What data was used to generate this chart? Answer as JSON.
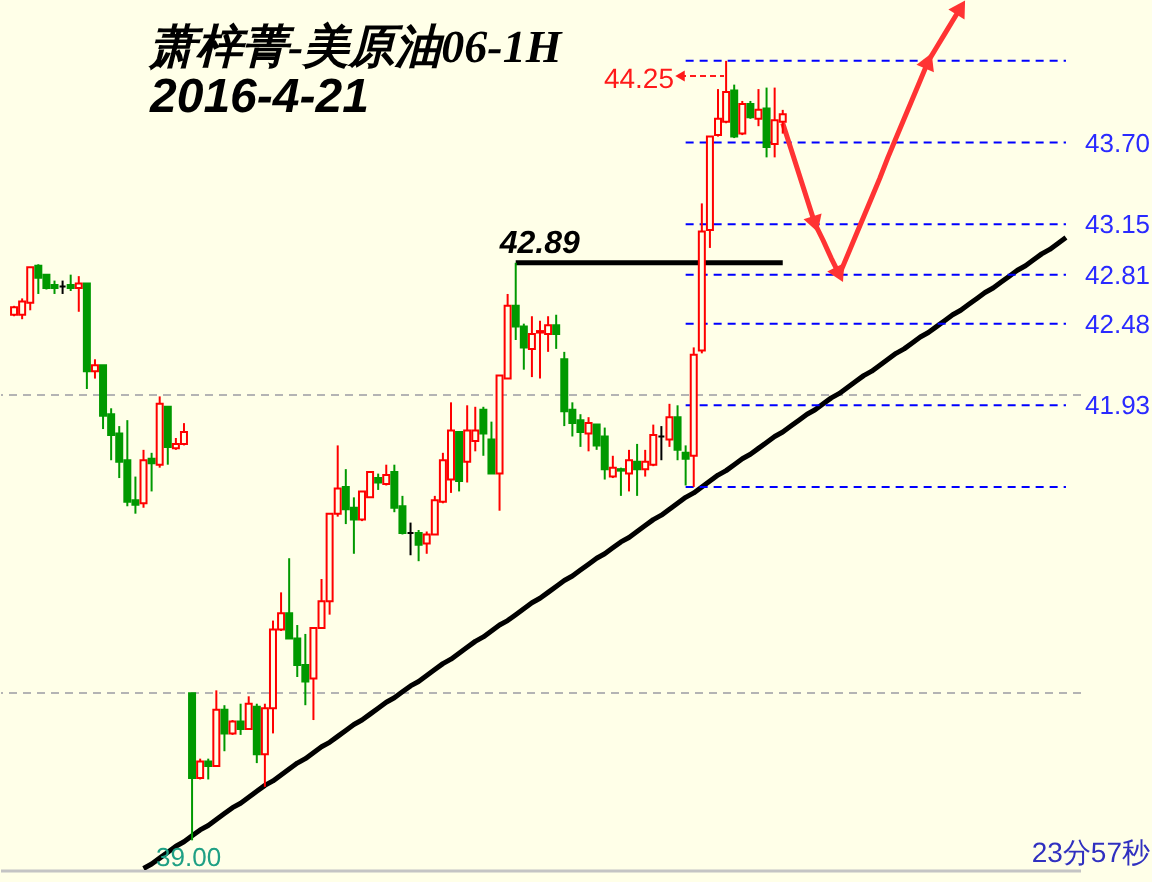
{
  "chart_data": {
    "type": "candlestick",
    "title": "萧梓菁-美原油06-1H",
    "subtitle": "2016-4-21",
    "categories": [
      null,
      null,
      null,
      null,
      null,
      null,
      null,
      null,
      null,
      null,
      null,
      null,
      null,
      null,
      null,
      null,
      null,
      null,
      null,
      null,
      null,
      null,
      null,
      null,
      null,
      null,
      null,
      null,
      null,
      null,
      null,
      null,
      null,
      null,
      null,
      null,
      null,
      null,
      null,
      null,
      null,
      null,
      null,
      null,
      null,
      null,
      null,
      null,
      null,
      null,
      null,
      null,
      null,
      null,
      null,
      null,
      null,
      null,
      null,
      null,
      null,
      null,
      null,
      null,
      null,
      null,
      null,
      null,
      null,
      null,
      null,
      null,
      null,
      null,
      null,
      null,
      null,
      null,
      null,
      null,
      null,
      null,
      null,
      null,
      null,
      null,
      null,
      null,
      null,
      null,
      null,
      null,
      null,
      null,
      null,
      null,
      null,
      null,
      null,
      null,
      null,
      null,
      null,
      null,
      null,
      null,
      null,
      null,
      null,
      null,
      null,
      null,
      null,
      null,
      null,
      null,
      null,
      null,
      null,
      null,
      null,
      null,
      null,
      null,
      null,
      null,
      null,
      null,
      null,
      null,
      null
    ],
    "ohlc": [
      [
        42.54,
        42.6,
        42.53,
        42.59
      ],
      [
        42.54,
        42.65,
        42.51,
        42.63
      ],
      [
        42.62,
        42.86,
        42.57,
        42.86
      ],
      [
        42.87,
        42.88,
        42.68,
        42.79
      ],
      [
        42.81,
        42.81,
        42.71,
        42.72
      ],
      [
        42.74,
        42.77,
        42.68,
        42.72
      ],
      [
        42.73,
        42.77,
        42.68,
        42.73
      ],
      [
        42.74,
        42.81,
        42.7,
        42.72
      ],
      [
        42.72,
        42.8,
        42.56,
        42.75
      ],
      [
        42.75,
        42.75,
        42.04,
        42.16
      ],
      [
        42.16,
        42.24,
        42.11,
        42.2
      ],
      [
        42.2,
        42.2,
        41.77,
        41.86
      ],
      [
        41.87,
        41.91,
        41.56,
        41.73
      ],
      [
        41.74,
        41.79,
        41.44,
        41.55
      ],
      [
        41.56,
        41.83,
        41.25,
        41.28
      ],
      [
        41.29,
        41.45,
        41.2,
        41.26
      ],
      [
        41.27,
        41.63,
        41.24,
        41.56
      ],
      [
        41.57,
        41.61,
        41.35,
        41.54
      ],
      [
        41.53,
        41.99,
        41.51,
        41.94
      ],
      [
        41.92,
        41.92,
        41.53,
        41.65
      ],
      [
        41.64,
        41.71,
        41.63,
        41.67
      ],
      [
        41.67,
        41.81,
        41.66,
        41.75
      ],
      [
        39.99,
        39.99,
        39.0,
        39.42
      ],
      [
        39.42,
        39.55,
        39.41,
        39.53
      ],
      [
        39.53,
        39.55,
        39.41,
        39.5
      ],
      [
        39.5,
        40.01,
        39.5,
        39.88
      ],
      [
        39.88,
        39.91,
        39.6,
        39.72
      ],
      [
        39.72,
        39.81,
        39.71,
        39.8
      ],
      [
        39.8,
        39.92,
        39.71,
        39.75
      ],
      [
        39.75,
        39.97,
        39.75,
        39.92
      ],
      [
        39.9,
        39.92,
        39.52,
        39.58
      ],
      [
        39.58,
        39.92,
        39.36,
        39.89
      ],
      [
        39.89,
        40.48,
        39.72,
        40.42
      ],
      [
        40.42,
        40.67,
        40.41,
        40.53
      ],
      [
        40.53,
        40.9,
        40.36,
        40.36
      ],
      [
        40.36,
        40.45,
        40.1,
        40.18
      ],
      [
        40.18,
        40.39,
        39.91,
        40.07
      ],
      [
        40.09,
        40.43,
        39.81,
        40.43
      ],
      [
        40.43,
        40.76,
        40.43,
        40.61
      ],
      [
        40.61,
        41.2,
        40.52,
        41.2
      ],
      [
        41.2,
        41.66,
        41.18,
        41.37
      ],
      [
        41.38,
        41.5,
        41.13,
        41.23
      ],
      [
        41.24,
        41.31,
        40.93,
        41.16
      ],
      [
        41.16,
        41.35,
        41.15,
        41.35
      ],
      [
        41.31,
        41.48,
        41.31,
        41.48
      ],
      [
        41.44,
        41.47,
        41.36,
        41.41
      ],
      [
        41.4,
        41.53,
        41.39,
        41.46
      ],
      [
        41.48,
        41.53,
        41.21,
        41.24
      ],
      [
        41.25,
        41.32,
        41.06,
        41.07
      ],
      [
        41.07,
        41.14,
        40.92,
        41.07
      ],
      [
        41.07,
        41.09,
        40.88,
        40.99
      ],
      [
        41.0,
        41.08,
        40.93,
        41.06
      ],
      [
        41.06,
        41.32,
        41.06,
        41.29
      ],
      [
        41.28,
        41.61,
        41.27,
        41.56
      ],
      [
        41.43,
        41.95,
        41.34,
        41.76
      ],
      [
        41.75,
        41.75,
        41.35,
        41.42
      ],
      [
        41.55,
        41.93,
        41.41,
        41.76
      ],
      [
        41.69,
        41.92,
        41.62,
        41.76
      ],
      [
        41.9,
        41.92,
        41.59,
        41.74
      ],
      [
        41.7,
        41.82,
        41.47,
        41.47
      ],
      [
        41.47,
        42.13,
        41.22,
        42.13
      ],
      [
        42.11,
        42.68,
        42.11,
        42.6
      ],
      [
        42.6,
        42.89,
        42.37,
        42.46
      ],
      [
        42.46,
        42.48,
        42.17,
        42.32
      ],
      [
        42.31,
        42.53,
        42.12,
        42.41
      ],
      [
        42.42,
        42.5,
        42.11,
        42.43
      ],
      [
        42.41,
        42.53,
        42.29,
        42.47
      ],
      [
        42.47,
        42.54,
        42.31,
        42.41
      ],
      [
        42.24,
        42.29,
        41.79,
        41.89
      ],
      [
        41.9,
        41.95,
        41.72,
        41.81
      ],
      [
        41.83,
        41.87,
        41.65,
        41.75
      ],
      [
        41.74,
        41.85,
        41.62,
        41.81
      ],
      [
        41.8,
        41.8,
        41.63,
        41.66
      ],
      [
        41.72,
        41.78,
        41.43,
        41.5
      ],
      [
        41.45,
        41.59,
        41.44,
        41.51
      ],
      [
        41.5,
        41.51,
        41.32,
        41.49
      ],
      [
        41.47,
        41.63,
        41.35,
        41.56
      ],
      [
        41.55,
        41.67,
        41.32,
        41.5
      ],
      [
        41.5,
        41.63,
        41.45,
        41.55
      ],
      [
        41.53,
        41.8,
        41.52,
        41.73
      ],
      [
        41.72,
        41.79,
        41.56,
        41.72
      ],
      [
        41.7,
        41.94,
        41.65,
        41.85
      ],
      [
        41.85,
        41.93,
        41.56,
        41.63
      ],
      [
        41.61,
        41.66,
        41.39,
        41.57
      ],
      [
        41.59,
        42.32,
        41.38,
        42.27
      ],
      [
        42.3,
        43.29,
        42.28,
        43.1
      ],
      [
        43.11,
        43.74,
        42.99,
        43.74
      ],
      [
        43.75,
        44.06,
        43.74,
        43.86
      ],
      [
        43.84,
        44.25,
        43.83,
        44.04
      ],
      [
        44.05,
        44.09,
        43.73,
        43.74
      ],
      [
        43.76,
        43.98,
        43.75,
        43.96
      ],
      [
        43.96,
        43.98,
        43.86,
        43.87
      ],
      [
        43.86,
        44.06,
        43.81,
        43.92
      ],
      [
        43.93,
        44.07,
        43.6,
        43.67
      ],
      [
        43.69,
        44.07,
        43.6,
        43.85
      ],
      [
        43.84,
        43.92,
        43.76,
        43.89
      ],
      null,
      null,
      null,
      null,
      null,
      null,
      null,
      null,
      null,
      null,
      null,
      null,
      null,
      null,
      null,
      null,
      null,
      null,
      null,
      null,
      null,
      null,
      null,
      null,
      null,
      null,
      null,
      null,
      null,
      null,
      null,
      null,
      null,
      null,
      null
    ],
    "colors": [
      "#ff0000",
      "#ff0000",
      "#ff0000",
      "#009900",
      "#009900",
      "#009900",
      "#000000",
      "#009900",
      "#ff0000",
      "#009900",
      "#ff0000",
      "#009900",
      "#009900",
      "#009900",
      "#009900",
      "#009900",
      "#ff0000",
      "#009900",
      "#ff0000",
      "#009900",
      "#ff0000",
      "#ff0000",
      "#009900",
      "#ff0000",
      "#009900",
      "#ff0000",
      "#009900",
      "#ff0000",
      "#009900",
      "#ff0000",
      "#009900",
      "#ff0000",
      "#ff0000",
      "#ff0000",
      "#009900",
      "#009900",
      "#009900",
      "#ff0000",
      "#ff0000",
      "#ff0000",
      "#ff0000",
      "#009900",
      "#009900",
      "#ff0000",
      "#ff0000",
      "#009900",
      "#ff0000",
      "#009900",
      "#009900",
      "#000000",
      "#009900",
      "#ff0000",
      "#ff0000",
      "#ff0000",
      "#ff0000",
      "#009900",
      "#ff0000",
      "#ff0000",
      "#009900",
      "#009900",
      "#ff0000",
      "#ff0000",
      "#009900",
      "#009900",
      "#ff0000",
      "#ff0000",
      "#ff0000",
      "#009900",
      "#009900",
      "#009900",
      "#009900",
      "#ff0000",
      "#009900",
      "#009900",
      "#ff0000",
      "#009900",
      "#ff0000",
      "#009900",
      "#ff0000",
      "#ff0000",
      "#000000",
      "#ff0000",
      "#009900",
      "#009900",
      "#ff0000",
      "#ff0000",
      "#ff0000",
      "#ff0000",
      "#ff0000",
      "#009900",
      "#ff0000",
      "#009900",
      "#ff0000",
      "#009900",
      "#ff0000",
      "#ff0000",
      null,
      null,
      null,
      null,
      null,
      null,
      null,
      null,
      null,
      null,
      null,
      null,
      null,
      null,
      null,
      null,
      null,
      null,
      null,
      null,
      null,
      null,
      null,
      null,
      null,
      null,
      null,
      null,
      null,
      null,
      null,
      null,
      null,
      null,
      null
    ],
    "ylim": [
      38.8,
      44.66
    ],
    "yticks": [
      {
        "value": 40,
        "label": null
      },
      41.93,
      {
        "value": 42,
        "label": null
      },
      42.48,
      42.81,
      43.15,
      {
        "value": 43.7,
        "label": "43.70"
      }
    ],
    "grid": "y",
    "tick_labels": "y",
    "series": [
      {
        "type": "line",
        "color": "#000000",
        "values": [
          null,
          null,
          null,
          null,
          null,
          null,
          null,
          null,
          null,
          null,
          null,
          null,
          null,
          null,
          null,
          null,
          38.81,
          38.84,
          38.88,
          38.92,
          38.96,
          38.99,
          39.03,
          39.07,
          39.1,
          39.14,
          39.18,
          39.22,
          39.25,
          39.29,
          39.33,
          39.37,
          39.4,
          39.44,
          39.48,
          39.52,
          39.55,
          39.59,
          39.63,
          39.66,
          39.7,
          39.74,
          39.78,
          39.81,
          39.85,
          39.89,
          39.93,
          39.96,
          40.0,
          40.04,
          40.07,
          40.11,
          40.15,
          40.19,
          40.22,
          40.26,
          40.3,
          40.34,
          40.37,
          40.41,
          40.45,
          40.48,
          40.52,
          40.56,
          40.6,
          40.63,
          40.67,
          40.71,
          40.75,
          40.78,
          40.82,
          40.86,
          40.9,
          40.93,
          40.97,
          41.01,
          41.04,
          41.08,
          41.12,
          41.16,
          41.19,
          41.23,
          41.27,
          41.31,
          41.34,
          41.38,
          41.42,
          41.46,
          41.49,
          41.53,
          41.57,
          41.6,
          41.64,
          41.68,
          41.72,
          41.75,
          41.79,
          41.83,
          41.87,
          41.9,
          41.94,
          41.98,
          42.01,
          42.05,
          42.09,
          42.13,
          42.16,
          42.2,
          42.24,
          42.28,
          42.31,
          42.35,
          42.39,
          42.42,
          42.46,
          42.5,
          42.54,
          42.57,
          42.61,
          42.65,
          42.69,
          42.72,
          42.76,
          42.8,
          42.84,
          42.87,
          42.91,
          42.95,
          42.98,
          43.02,
          43.06
        ]
      },
      {
        "type": "line",
        "color": "#000000",
        "values": [
          null,
          null,
          null,
          null,
          null,
          null,
          null,
          null,
          null,
          null,
          null,
          null,
          null,
          null,
          null,
          null,
          null,
          null,
          null,
          null,
          null,
          null,
          null,
          null,
          null,
          null,
          null,
          null,
          null,
          null,
          null,
          null,
          null,
          null,
          null,
          null,
          null,
          null,
          null,
          null,
          null,
          null,
          null,
          null,
          null,
          null,
          null,
          null,
          null,
          null,
          null,
          null,
          null,
          null,
          null,
          null,
          null,
          null,
          null,
          null,
          null,
          null,
          42.89,
          42.89,
          42.89,
          42.89,
          42.89,
          42.89,
          42.89,
          42.89,
          42.89,
          42.89,
          42.89,
          42.89,
          42.89,
          42.89,
          42.89,
          42.89,
          42.89,
          42.89,
          42.89,
          42.89,
          42.89,
          42.89,
          42.89,
          42.89,
          42.89,
          42.89,
          42.89,
          42.89,
          42.89,
          42.89,
          42.89,
          42.89,
          42.89,
          42.89,
          null,
          null,
          null,
          null,
          null,
          null,
          null,
          null,
          null,
          null,
          null,
          null,
          null,
          null,
          null,
          null,
          null,
          null,
          null,
          null,
          null,
          null,
          null,
          null,
          null,
          null,
          null,
          null,
          null,
          null,
          null,
          null,
          null,
          null,
          null
        ]
      },
      {
        "type": "line",
        "color": "#0000ff",
        "line_style": "dashed",
        "values": [
          null,
          null,
          null,
          null,
          null,
          null,
          null,
          null,
          null,
          null,
          null,
          null,
          null,
          null,
          null,
          null,
          null,
          null,
          null,
          null,
          null,
          null,
          null,
          null,
          null,
          null,
          null,
          null,
          null,
          null,
          null,
          null,
          null,
          null,
          null,
          null,
          null,
          null,
          null,
          null,
          null,
          null,
          null,
          null,
          null,
          null,
          null,
          null,
          null,
          null,
          null,
          null,
          null,
          null,
          null,
          null,
          null,
          null,
          null,
          null,
          null,
          null,
          null,
          null,
          null,
          null,
          null,
          null,
          null,
          null,
          null,
          null,
          null,
          null,
          null,
          null,
          null,
          null,
          null,
          null,
          null,
          null,
          null,
          44.25,
          44.25,
          44.25,
          44.25,
          44.25,
          44.25,
          44.25,
          44.25,
          44.25,
          44.25,
          44.25,
          44.25,
          44.25,
          44.25,
          44.25,
          44.25,
          44.25,
          44.25,
          44.25,
          44.25,
          44.25,
          44.25,
          44.25,
          44.25,
          44.25,
          44.25,
          44.25,
          44.25,
          44.25,
          44.25,
          44.25,
          44.25,
          44.25,
          44.25,
          44.25,
          44.25,
          44.25,
          44.25,
          44.25,
          44.25,
          44.25,
          44.25,
          44.25,
          44.25,
          44.25,
          44.25,
          44.25,
          44.25
        ]
      },
      {
        "type": "line",
        "color": "#0000ff",
        "line_style": "dashed",
        "values": [
          null,
          null,
          null,
          null,
          null,
          null,
          null,
          null,
          null,
          null,
          null,
          null,
          null,
          null,
          null,
          null,
          null,
          null,
          null,
          null,
          null,
          null,
          null,
          null,
          null,
          null,
          null,
          null,
          null,
          null,
          null,
          null,
          null,
          null,
          null,
          null,
          null,
          null,
          null,
          null,
          null,
          null,
          null,
          null,
          null,
          null,
          null,
          null,
          null,
          null,
          null,
          null,
          null,
          null,
          null,
          null,
          null,
          null,
          null,
          null,
          null,
          null,
          null,
          null,
          null,
          null,
          null,
          null,
          null,
          null,
          null,
          null,
          null,
          null,
          null,
          null,
          null,
          null,
          null,
          null,
          null,
          null,
          null,
          43.7,
          43.7,
          43.7,
          43.7,
          43.7,
          43.7,
          43.7,
          43.7,
          43.7,
          43.7,
          43.7,
          43.7,
          43.7,
          43.7,
          43.7,
          43.7,
          43.7,
          43.7,
          43.7,
          43.7,
          43.7,
          43.7,
          43.7,
          43.7,
          43.7,
          43.7,
          43.7,
          43.7,
          43.7,
          43.7,
          43.7,
          43.7,
          43.7,
          43.7,
          43.7,
          43.7,
          43.7,
          43.7,
          43.7,
          43.7,
          43.7,
          43.7,
          43.7,
          43.7,
          43.7,
          43.7,
          43.7,
          43.7
        ]
      },
      {
        "type": "line",
        "color": "#0000ff",
        "line_style": "dashed",
        "values": [
          null,
          null,
          null,
          null,
          null,
          null,
          null,
          null,
          null,
          null,
          null,
          null,
          null,
          null,
          null,
          null,
          null,
          null,
          null,
          null,
          null,
          null,
          null,
          null,
          null,
          null,
          null,
          null,
          null,
          null,
          null,
          null,
          null,
          null,
          null,
          null,
          null,
          null,
          null,
          null,
          null,
          null,
          null,
          null,
          null,
          null,
          null,
          null,
          null,
          null,
          null,
          null,
          null,
          null,
          null,
          null,
          null,
          null,
          null,
          null,
          null,
          null,
          null,
          null,
          null,
          null,
          null,
          null,
          null,
          null,
          null,
          null,
          null,
          null,
          null,
          null,
          null,
          null,
          null,
          null,
          null,
          null,
          null,
          43.15,
          43.15,
          43.15,
          43.15,
          43.15,
          43.15,
          43.15,
          43.15,
          43.15,
          43.15,
          43.15,
          43.15,
          43.15,
          43.15,
          43.15,
          43.15,
          43.15,
          43.15,
          43.15,
          43.15,
          43.15,
          43.15,
          43.15,
          43.15,
          43.15,
          43.15,
          43.15,
          43.15,
          43.15,
          43.15,
          43.15,
          43.15,
          43.15,
          43.15,
          43.15,
          43.15,
          43.15,
          43.15,
          43.15,
          43.15,
          43.15,
          43.15,
          43.15,
          43.15,
          43.15,
          43.15,
          43.15,
          43.15
        ]
      },
      {
        "type": "line",
        "color": "#0000ff",
        "line_style": "dashed",
        "values": [
          null,
          null,
          null,
          null,
          null,
          null,
          null,
          null,
          null,
          null,
          null,
          null,
          null,
          null,
          null,
          null,
          null,
          null,
          null,
          null,
          null,
          null,
          null,
          null,
          null,
          null,
          null,
          null,
          null,
          null,
          null,
          null,
          null,
          null,
          null,
          null,
          null,
          null,
          null,
          null,
          null,
          null,
          null,
          null,
          null,
          null,
          null,
          null,
          null,
          null,
          null,
          null,
          null,
          null,
          null,
          null,
          null,
          null,
          null,
          null,
          null,
          null,
          null,
          null,
          null,
          null,
          null,
          null,
          null,
          null,
          null,
          null,
          null,
          null,
          null,
          null,
          null,
          null,
          null,
          null,
          null,
          null,
          null,
          42.81,
          42.81,
          42.81,
          42.81,
          42.81,
          42.81,
          42.81,
          42.81,
          42.81,
          42.81,
          42.81,
          42.81,
          42.81,
          42.81,
          42.81,
          42.81,
          42.81,
          42.81,
          42.81,
          42.81,
          42.81,
          42.81,
          42.81,
          42.81,
          42.81,
          42.81,
          42.81,
          42.81,
          42.81,
          42.81,
          42.81,
          42.81,
          42.81,
          42.81,
          42.81,
          42.81,
          42.81,
          42.81,
          42.81,
          42.81,
          42.81,
          42.81,
          42.81,
          42.81,
          42.81,
          42.81,
          42.81,
          42.81
        ]
      },
      {
        "type": "line",
        "color": "#0000ff",
        "line_style": "dashed",
        "values": [
          null,
          null,
          null,
          null,
          null,
          null,
          null,
          null,
          null,
          null,
          null,
          null,
          null,
          null,
          null,
          null,
          null,
          null,
          null,
          null,
          null,
          null,
          null,
          null,
          null,
          null,
          null,
          null,
          null,
          null,
          null,
          null,
          null,
          null,
          null,
          null,
          null,
          null,
          null,
          null,
          null,
          null,
          null,
          null,
          null,
          null,
          null,
          null,
          null,
          null,
          null,
          null,
          null,
          null,
          null,
          null,
          null,
          null,
          null,
          null,
          null,
          null,
          null,
          null,
          null,
          null,
          null,
          null,
          null,
          null,
          null,
          null,
          null,
          null,
          null,
          null,
          null,
          null,
          null,
          null,
          null,
          null,
          null,
          42.48,
          42.48,
          42.48,
          42.48,
          42.48,
          42.48,
          42.48,
          42.48,
          42.48,
          42.48,
          42.48,
          42.48,
          42.48,
          42.48,
          42.48,
          42.48,
          42.48,
          42.48,
          42.48,
          42.48,
          42.48,
          42.48,
          42.48,
          42.48,
          42.48,
          42.48,
          42.48,
          42.48,
          42.48,
          42.48,
          42.48,
          42.48,
          42.48,
          42.48,
          42.48,
          42.48,
          42.48,
          42.48,
          42.48,
          42.48,
          42.48,
          42.48,
          42.48,
          42.48,
          42.48,
          42.48,
          42.48,
          42.48
        ]
      },
      {
        "type": "line",
        "color": "#0000ff",
        "line_style": "dashed",
        "values": [
          null,
          null,
          null,
          null,
          null,
          null,
          null,
          null,
          null,
          null,
          null,
          null,
          null,
          null,
          null,
          null,
          null,
          null,
          null,
          null,
          null,
          null,
          null,
          null,
          null,
          null,
          null,
          null,
          null,
          null,
          null,
          null,
          null,
          null,
          null,
          null,
          null,
          null,
          null,
          null,
          null,
          null,
          null,
          null,
          null,
          null,
          null,
          null,
          null,
          null,
          null,
          null,
          null,
          null,
          null,
          null,
          null,
          null,
          null,
          null,
          null,
          null,
          null,
          null,
          null,
          null,
          null,
          null,
          null,
          null,
          null,
          null,
          null,
          null,
          null,
          null,
          null,
          null,
          null,
          null,
          null,
          null,
          null,
          41.93,
          41.93,
          41.93,
          41.93,
          41.93,
          41.93,
          41.93,
          41.93,
          41.93,
          41.93,
          41.93,
          41.93,
          41.93,
          41.93,
          41.93,
          41.93,
          41.93,
          41.93,
          41.93,
          41.93,
          41.93,
          41.93,
          41.93,
          41.93,
          41.93,
          41.93,
          41.93,
          41.93,
          41.93,
          41.93,
          41.93,
          41.93,
          41.93,
          41.93,
          41.93,
          41.93,
          41.93,
          41.93,
          41.93,
          41.93,
          41.93,
          41.93,
          41.93,
          41.93,
          41.93,
          41.93,
          41.93,
          41.93
        ]
      },
      {
        "type": "line",
        "color": "#0000ff",
        "line_style": "dashed",
        "values": [
          null,
          null,
          null,
          null,
          null,
          null,
          null,
          null,
          null,
          null,
          null,
          null,
          null,
          null,
          null,
          null,
          null,
          null,
          null,
          null,
          null,
          null,
          null,
          null,
          null,
          null,
          null,
          null,
          null,
          null,
          null,
          null,
          null,
          null,
          null,
          null,
          null,
          null,
          null,
          null,
          null,
          null,
          null,
          null,
          null,
          null,
          null,
          null,
          null,
          null,
          null,
          null,
          null,
          null,
          null,
          null,
          null,
          null,
          null,
          null,
          null,
          null,
          null,
          null,
          null,
          null,
          null,
          null,
          null,
          null,
          null,
          null,
          null,
          null,
          null,
          null,
          null,
          null,
          null,
          null,
          null,
          null,
          null,
          41.38,
          41.38,
          41.38,
          41.38,
          41.38,
          41.38,
          41.38,
          41.38,
          41.38,
          41.38,
          41.38,
          41.38,
          41.38,
          41.38,
          41.38,
          41.38,
          41.38,
          41.38,
          41.38,
          41.38,
          41.38,
          41.38,
          41.38,
          41.38,
          41.38,
          41.38,
          41.38,
          41.38,
          41.38,
          41.38,
          41.38,
          41.38,
          41.38,
          41.38,
          41.38,
          41.38,
          41.38,
          41.38,
          41.38,
          41.38,
          41.38,
          41.38,
          41.38,
          41.38,
          41.38,
          41.38,
          41.38,
          41.38
        ]
      },
      {
        "type": "line",
        "color": "#ff3333",
        "values": [
          null,
          null,
          null,
          null,
          null,
          null,
          null,
          null,
          null,
          null,
          null,
          null,
          null,
          null,
          null,
          null,
          null,
          null,
          null,
          null,
          null,
          null,
          null,
          null,
          null,
          null,
          null,
          null,
          null,
          null,
          null,
          null,
          null,
          null,
          null,
          null,
          null,
          null,
          null,
          null,
          null,
          null,
          null,
          null,
          null,
          null,
          null,
          null,
          null,
          null,
          null,
          null,
          null,
          null,
          null,
          null,
          null,
          null,
          null,
          null,
          null,
          null,
          null,
          null,
          null,
          null,
          null,
          null,
          null,
          null,
          null,
          null,
          null,
          null,
          null,
          null,
          null,
          null,
          null,
          null,
          null,
          null,
          null,
          null,
          null,
          null,
          null,
          null,
          null,
          null,
          null,
          null,
          null,
          null,
          null,
          43.83,
          43.66,
          43.49,
          43.32,
          43.15,
          43.04,
          42.92,
          42.81,
          42.94,
          43.07,
          43.2,
          43.33,
          43.46,
          43.6,
          43.73,
          43.86,
          43.99,
          44.12,
          44.25,
          44.34,
          44.43,
          44.52,
          44.61,
          null,
          null,
          null,
          null,
          null,
          null,
          null,
          null,
          null,
          null,
          null,
          null,
          null
        ]
      }
    ],
    "annotations": [
      "44.25",
      {
        "text": "42.89",
        "y": 42.89
      },
      {
        "text": "39.00",
        "y": 39.0
      },
      "23分57秒"
    ]
  }
}
